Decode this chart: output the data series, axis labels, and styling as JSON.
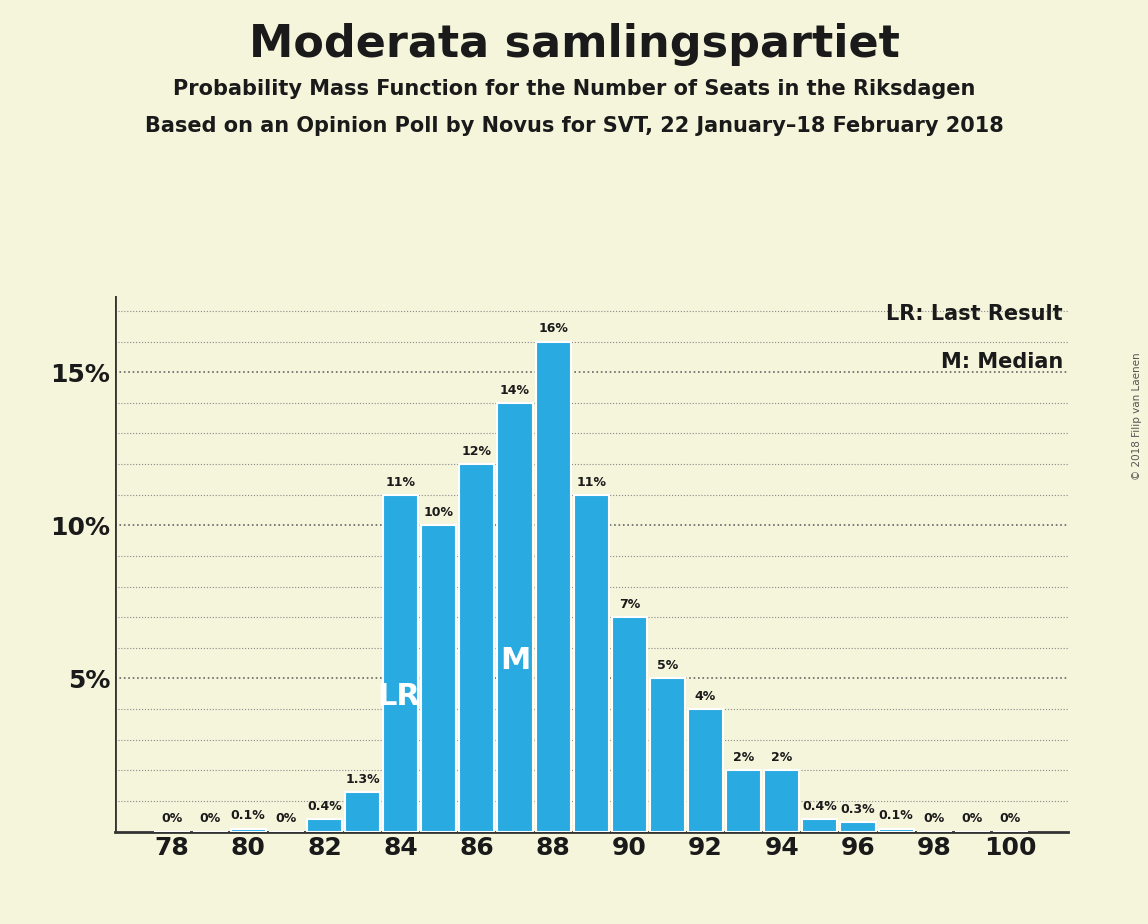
{
  "title": "Moderata samlingspartiet",
  "subtitle1": "Probability Mass Function for the Number of Seats in the Riksdagen",
  "subtitle2": "Based on an Opinion Poll by Novus for SVT, 22 January–18 February 2018",
  "copyright": "© 2018 Filip van Laenen",
  "seats": [
    78,
    79,
    80,
    81,
    82,
    83,
    84,
    85,
    86,
    87,
    88,
    89,
    90,
    91,
    92,
    93,
    94,
    95,
    96,
    97,
    98,
    99,
    100
  ],
  "probabilities": [
    0.0,
    0.0,
    0.1,
    0.0,
    0.4,
    1.3,
    11.0,
    10.0,
    12.0,
    14.0,
    16.0,
    11.0,
    7.0,
    5.0,
    4.0,
    2.0,
    2.0,
    0.4,
    0.3,
    0.1,
    0.0,
    0.0,
    0.0
  ],
  "bar_color": "#29ABE2",
  "background_color": "#F5F5DC",
  "text_color": "#1a1a1a",
  "lr_seat": 84,
  "median_seat": 87,
  "yticks": [
    5,
    10,
    15
  ],
  "ylim": [
    0,
    17.5
  ],
  "xlim": [
    76.5,
    101.5
  ],
  "xticks": [
    78,
    80,
    82,
    84,
    86,
    88,
    90,
    92,
    94,
    96,
    98,
    100
  ],
  "legend_lr": "LR: Last Result",
  "legend_m": "M: Median",
  "bar_width": 0.92
}
